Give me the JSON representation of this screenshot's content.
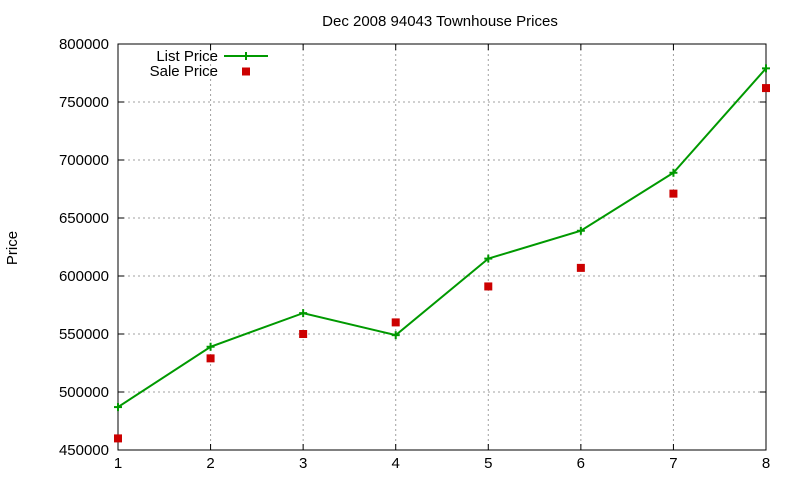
{
  "chart_data": {
    "type": "line",
    "title": "Dec 2008 94043 Townhouse Prices",
    "xlabel": "",
    "ylabel": "Price",
    "x": [
      1,
      2,
      3,
      4,
      5,
      6,
      7,
      8
    ],
    "xticks": [
      "1",
      "2",
      "3",
      "4",
      "5",
      "6",
      "7",
      "8"
    ],
    "xlim": [
      1,
      8
    ],
    "ylim": [
      450000,
      800000
    ],
    "yticks": [
      "450000",
      "500000",
      "550000",
      "600000",
      "650000",
      "700000",
      "750000",
      "800000"
    ],
    "grid": true,
    "legend_position": "top-left",
    "series": [
      {
        "name": "List Price",
        "style": "line with cross markers",
        "color": "#009900",
        "values": [
          487000,
          539000,
          568000,
          549000,
          615000,
          639000,
          689000,
          779000
        ]
      },
      {
        "name": "Sale Price",
        "style": "square markers",
        "color": "#cc0000",
        "values": [
          460000,
          529000,
          550000,
          560000,
          591000,
          607000,
          671000,
          762000
        ]
      }
    ]
  }
}
